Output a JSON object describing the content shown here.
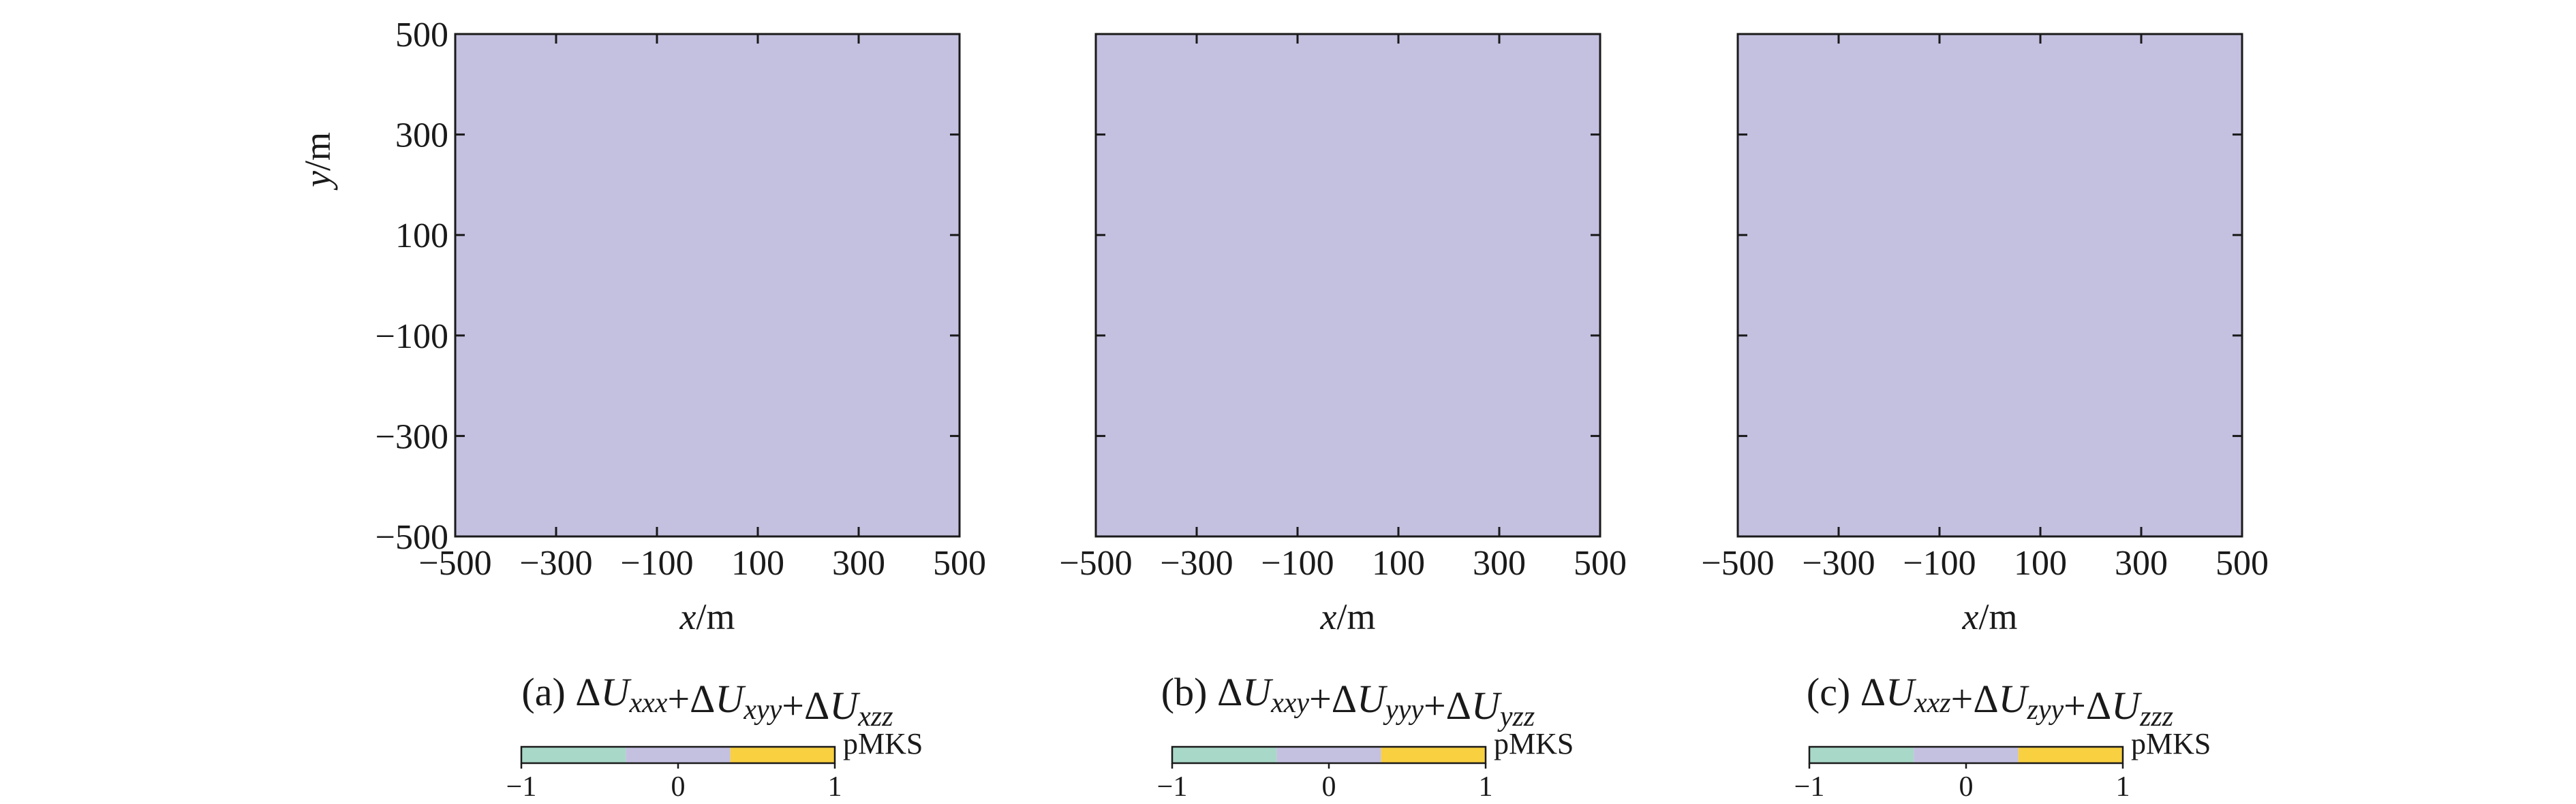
{
  "figure": {
    "colormap": [
      "#a8d8c8",
      "#c4c0e0",
      "#f8d040"
    ],
    "field_color": "#c4c0e0",
    "colorbar": {
      "unit": "pMKS",
      "ticks": [
        "−1",
        "0",
        "1"
      ]
    }
  },
  "chart_data": [
    {
      "type": "heatmap",
      "panel_label": "(a)",
      "caption_terms": [
        "xxx",
        "xyy",
        "xzz"
      ],
      "xlabel_var": "x",
      "xlabel_unit": "/m",
      "ylabel_var": "y",
      "ylabel_unit": "/m",
      "xlim": [
        -500,
        500
      ],
      "ylim": [
        -500,
        500
      ],
      "xticks": [
        "−500",
        "−300",
        "−100",
        "100",
        "300",
        "500"
      ],
      "yticks": [
        "500",
        "300",
        "100",
        "−100",
        "−300",
        "−500"
      ],
      "values": [
        [
          0
        ]
      ],
      "colorbar_range": [
        -1,
        1
      ]
    },
    {
      "type": "heatmap",
      "panel_label": "(b)",
      "caption_terms": [
        "xxy",
        "yyy",
        "yzz"
      ],
      "xlabel_var": "x",
      "xlabel_unit": "/m",
      "xlim": [
        -500,
        500
      ],
      "ylim": [
        -500,
        500
      ],
      "xticks": [
        "−500",
        "−300",
        "−100",
        "100",
        "300",
        "500"
      ],
      "values": [
        [
          0
        ]
      ],
      "colorbar_range": [
        -1,
        1
      ]
    },
    {
      "type": "heatmap",
      "panel_label": "(c)",
      "caption_terms": [
        "xxz",
        "zyy",
        "zzz"
      ],
      "xlabel_var": "x",
      "xlabel_unit": "/m",
      "xlim": [
        -500,
        500
      ],
      "ylim": [
        -500,
        500
      ],
      "xticks": [
        "−500",
        "−300",
        "−100",
        "100",
        "300",
        "500"
      ],
      "values": [
        [
          0
        ]
      ],
      "colorbar_range": [
        -1,
        1
      ]
    }
  ]
}
